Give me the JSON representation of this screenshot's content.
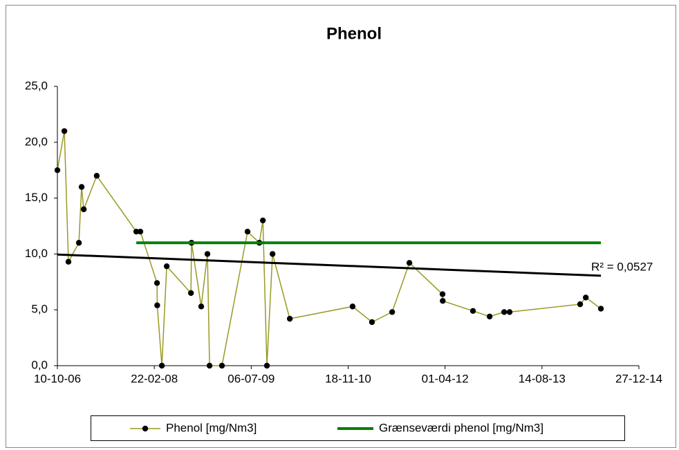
{
  "chart_data": {
    "type": "line",
    "title": "Phenol",
    "xlim": [
      "2006-10-10",
      "2014-12-27"
    ],
    "xticks": [
      {
        "value": "2006-10-10",
        "label": "10-10-06"
      },
      {
        "value": "2008-02-22",
        "label": "22-02-08"
      },
      {
        "value": "2009-07-06",
        "label": "06-07-09"
      },
      {
        "value": "2010-11-18",
        "label": "18-11-10"
      },
      {
        "value": "2012-04-01",
        "label": "01-04-12"
      },
      {
        "value": "2013-08-14",
        "label": "14-08-13"
      },
      {
        "value": "2014-12-27",
        "label": "27-12-14"
      }
    ],
    "ylim": [
      0,
      25
    ],
    "yticks": [
      {
        "value": 0,
        "label": "0,0"
      },
      {
        "value": 5,
        "label": "5,0"
      },
      {
        "value": 10,
        "label": "10,0"
      },
      {
        "value": 15,
        "label": "15,0"
      },
      {
        "value": 20,
        "label": "20,0"
      },
      {
        "value": 25,
        "label": "25,0"
      }
    ],
    "legend": "bottom",
    "series": [
      {
        "name": "Phenol [mg/Nm3]",
        "color": "#999922",
        "markers": true,
        "x": [
          "2006-10-10",
          "2006-11-15",
          "2006-12-06",
          "2007-01-29",
          "2007-02-12",
          "2007-02-23",
          "2007-05-01",
          "2007-11-21",
          "2007-12-12",
          "2008-03-07",
          "2008-03-08",
          "2008-04-01",
          "2008-04-26",
          "2008-08-29",
          "2008-09-01",
          "2008-10-21",
          "2008-11-22",
          "2008-12-03",
          "2009-02-05",
          "2009-06-17",
          "2009-08-17",
          "2009-09-04",
          "2009-09-25",
          "2009-10-24",
          "2010-01-21",
          "2010-12-11",
          "2011-03-21",
          "2011-07-03",
          "2011-09-30",
          "2012-03-19",
          "2012-03-20",
          "2012-08-23",
          "2012-11-17",
          "2013-01-31",
          "2013-02-28",
          "2014-02-27",
          "2014-03-28",
          "2014-06-14"
        ],
        "values": [
          17.5,
          21.0,
          9.3,
          11.0,
          16.0,
          14.0,
          17.0,
          12.0,
          12.0,
          7.4,
          5.4,
          0.0,
          8.9,
          6.5,
          11.0,
          5.3,
          10.0,
          0.0,
          0.0,
          12.0,
          11.0,
          13.0,
          0.0,
          10.0,
          4.2,
          5.3,
          3.9,
          4.8,
          9.2,
          6.4,
          5.8,
          4.9,
          4.4,
          4.8,
          4.8,
          5.5,
          6.1,
          5.1
        ]
      },
      {
        "name": "Grænseværdi phenol [mg/Nm3]",
        "color": "#008000",
        "markers": false,
        "x": [
          "2007-11-21",
          "2014-06-14"
        ],
        "values": [
          11.0,
          11.0
        ]
      }
    ],
    "trendline": {
      "color": "#000000",
      "x": [
        "2006-10-10",
        "2014-06-14"
      ],
      "values": [
        9.95,
        8.05
      ],
      "label": "R² = 0,0527"
    }
  }
}
